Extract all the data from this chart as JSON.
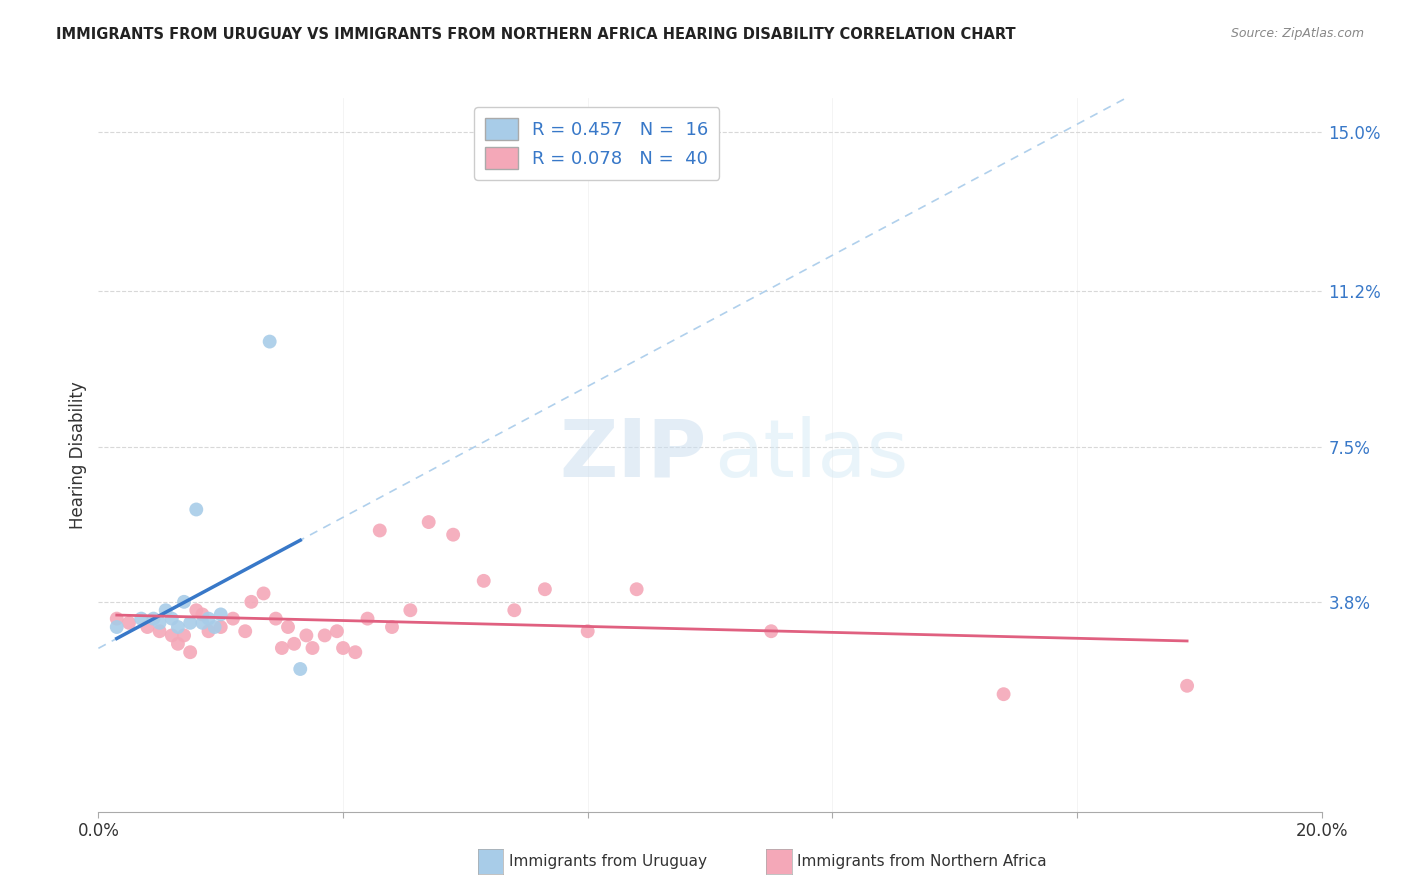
{
  "title": "IMMIGRANTS FROM URUGUAY VS IMMIGRANTS FROM NORTHERN AFRICA HEARING DISABILITY CORRELATION CHART",
  "source": "Source: ZipAtlas.com",
  "ylabel": "Hearing Disability",
  "ytick_values": [
    0.0,
    0.038,
    0.075,
    0.112,
    0.15
  ],
  "ytick_labels": [
    "",
    "3.8%",
    "7.5%",
    "11.2%",
    "15.0%"
  ],
  "xlim": [
    0.0,
    0.2
  ],
  "ylim": [
    -0.012,
    0.158
  ],
  "legend_r1": "R = 0.457",
  "legend_n1": "N =  16",
  "legend_r2": "R = 0.078",
  "legend_n2": "N =  40",
  "color_uruguay": "#a8cce8",
  "color_n_africa": "#f4a8b8",
  "regression_color_uruguay": "#3878c8",
  "regression_color_n_africa": "#e06080",
  "regression_dashed_color": "#b0d0ec",
  "watermark_zip": "ZIP",
  "watermark_atlas": "atlas",
  "scatter_uruguay_x": [
    0.003,
    0.007,
    0.009,
    0.01,
    0.011,
    0.012,
    0.013,
    0.014,
    0.015,
    0.016,
    0.017,
    0.018,
    0.019,
    0.02,
    0.028,
    0.033
  ],
  "scatter_uruguay_y": [
    0.032,
    0.034,
    0.034,
    0.033,
    0.036,
    0.034,
    0.032,
    0.038,
    0.033,
    0.06,
    0.033,
    0.034,
    0.032,
    0.035,
    0.1,
    0.022
  ],
  "scatter_n_africa_x": [
    0.003,
    0.005,
    0.008,
    0.01,
    0.012,
    0.013,
    0.014,
    0.015,
    0.016,
    0.017,
    0.018,
    0.02,
    0.022,
    0.024,
    0.025,
    0.027,
    0.029,
    0.03,
    0.031,
    0.032,
    0.034,
    0.035,
    0.037,
    0.039,
    0.04,
    0.042,
    0.044,
    0.046,
    0.048,
    0.051,
    0.054,
    0.058,
    0.063,
    0.068,
    0.073,
    0.08,
    0.088,
    0.11,
    0.148,
    0.178
  ],
  "scatter_n_africa_y": [
    0.034,
    0.033,
    0.032,
    0.031,
    0.03,
    0.028,
    0.03,
    0.026,
    0.036,
    0.035,
    0.031,
    0.032,
    0.034,
    0.031,
    0.038,
    0.04,
    0.034,
    0.027,
    0.032,
    0.028,
    0.03,
    0.027,
    0.03,
    0.031,
    0.027,
    0.026,
    0.034,
    0.055,
    0.032,
    0.036,
    0.057,
    0.054,
    0.043,
    0.036,
    0.041,
    0.031,
    0.041,
    0.031,
    0.016,
    0.018
  ],
  "marker_size": 100,
  "grid_color": "#d8d8d8",
  "background_color": "#ffffff",
  "bottom_label_uruguay": "Immigrants from Uruguay",
  "bottom_label_n_africa": "Immigrants from Northern Africa"
}
